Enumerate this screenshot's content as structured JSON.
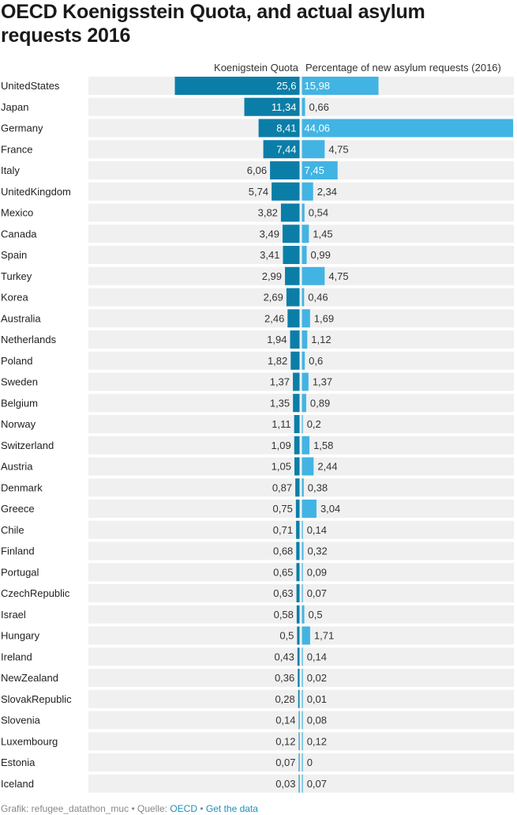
{
  "title": "OECD Koenigsstein Quota, and actual asylum requests 2016",
  "colors": {
    "left_bar": "#0b7ea8",
    "right_bar": "#42b4e3",
    "row_bg": "#f0f0f0",
    "label_on_bar": "#ffffff",
    "label_off_bar": "#333333"
  },
  "chart_data": {
    "type": "bar",
    "orientation": "horizontal",
    "title": "OECD Koenigsstein Quota, and actual asylum requests 2016",
    "categories": [
      "UnitedStates",
      "Japan",
      "Germany",
      "France",
      "Italy",
      "UnitedKingdom",
      "Mexico",
      "Canada",
      "Spain",
      "Turkey",
      "Korea",
      "Australia",
      "Netherlands",
      "Poland",
      "Sweden",
      "Belgium",
      "Norway",
      "Switzerland",
      "Austria",
      "Denmark",
      "Greece",
      "Chile",
      "Finland",
      "Portugal",
      "CzechRepublic",
      "Israel",
      "Hungary",
      "Ireland",
      "NewZealand",
      "SlovakRepublic",
      "Slovenia",
      "Luxembourg",
      "Estonia",
      "Iceland"
    ],
    "series": [
      {
        "name": "Koenigstein Quota",
        "values": [
          25.6,
          11.34,
          8.41,
          7.44,
          6.06,
          5.74,
          3.82,
          3.49,
          3.41,
          2.99,
          2.69,
          2.46,
          1.94,
          1.82,
          1.37,
          1.35,
          1.11,
          1.09,
          1.05,
          0.87,
          0.75,
          0.71,
          0.68,
          0.65,
          0.63,
          0.58,
          0.5,
          0.43,
          0.36,
          0.28,
          0.14,
          0.12,
          0.07,
          0.03
        ],
        "labels": [
          "25,6",
          "11,34",
          "8,41",
          "7,44",
          "6,06",
          "5,74",
          "3,82",
          "3,49",
          "3,41",
          "2,99",
          "2,69",
          "2,46",
          "1,94",
          "1,82",
          "1,37",
          "1,35",
          "1,11",
          "1,09",
          "1,05",
          "0,87",
          "0,75",
          "0,71",
          "0,68",
          "0,65",
          "0,63",
          "0,58",
          "0,5",
          "0,43",
          "0,36",
          "0,28",
          "0,14",
          "0,12",
          "0,07",
          "0,03"
        ]
      },
      {
        "name": "Percentage of new asylum requests (2016)",
        "values": [
          15.98,
          0.66,
          44.06,
          4.75,
          7.45,
          2.34,
          0.54,
          1.45,
          0.99,
          4.75,
          0.46,
          1.69,
          1.12,
          0.6,
          1.37,
          0.89,
          0.2,
          1.58,
          2.44,
          0.38,
          3.04,
          0.14,
          0.32,
          0.09,
          0.07,
          0.5,
          1.71,
          0.14,
          0.02,
          0.01,
          0.08,
          0.12,
          0,
          0.07
        ],
        "labels": [
          "15,98",
          "0,66",
          "44,06",
          "4,75",
          "7,45",
          "2,34",
          "0,54",
          "1,45",
          "0,99",
          "4,75",
          "0,46",
          "1,69",
          "1,12",
          "0,6",
          "1,37",
          "0,89",
          "0,2",
          "1,58",
          "2,44",
          "0,38",
          "3,04",
          "0,14",
          "0,32",
          "0,09",
          "0,07",
          "0,5",
          "1,71",
          "0,14",
          "0,02",
          "0,01",
          "0,08",
          "0,12",
          "0",
          "0,07"
        ]
      }
    ],
    "left_max": 25.6,
    "right_max": 44.06,
    "xlabel": "",
    "ylabel": ""
  },
  "footer": {
    "credit": "Grafik: refugee_datathon_muc",
    "separator": " • ",
    "source_label": "Quelle: ",
    "source": "OECD",
    "get_data": "Get the data"
  }
}
